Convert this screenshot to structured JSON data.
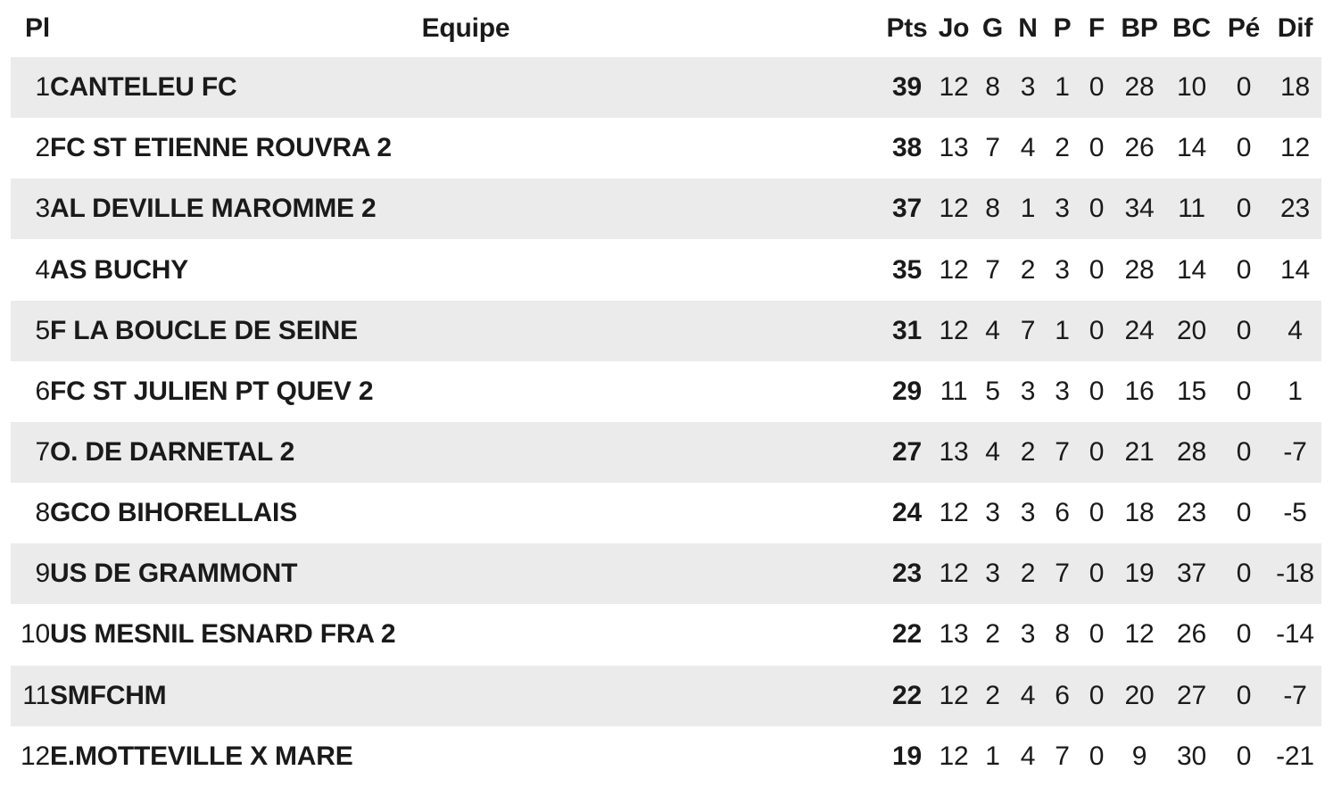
{
  "chart_data": {
    "type": "table",
    "title": "",
    "columns": [
      {
        "key": "pl",
        "label": "Pl"
      },
      {
        "key": "equipe",
        "label": "Equipe"
      },
      {
        "key": "pts",
        "label": "Pts"
      },
      {
        "key": "jo",
        "label": "Jo"
      },
      {
        "key": "g",
        "label": "G"
      },
      {
        "key": "n",
        "label": "N"
      },
      {
        "key": "p",
        "label": "P"
      },
      {
        "key": "f",
        "label": "F"
      },
      {
        "key": "bp",
        "label": "BP"
      },
      {
        "key": "bc",
        "label": "BC"
      },
      {
        "key": "pe",
        "label": "Pé"
      },
      {
        "key": "dif",
        "label": "Dif"
      }
    ],
    "rows": [
      {
        "pl": "1",
        "equipe": "CANTELEU FC",
        "pts": "39",
        "jo": "12",
        "g": "8",
        "n": "3",
        "p": "1",
        "f": "0",
        "bp": "28",
        "bc": "10",
        "pe": "0",
        "dif": "18"
      },
      {
        "pl": "2",
        "equipe": "FC ST ETIENNE ROUVRA 2",
        "pts": "38",
        "jo": "13",
        "g": "7",
        "n": "4",
        "p": "2",
        "f": "0",
        "bp": "26",
        "bc": "14",
        "pe": "0",
        "dif": "12"
      },
      {
        "pl": "3",
        "equipe": "AL DEVILLE MAROMME 2",
        "pts": "37",
        "jo": "12",
        "g": "8",
        "n": "1",
        "p": "3",
        "f": "0",
        "bp": "34",
        "bc": "11",
        "pe": "0",
        "dif": "23"
      },
      {
        "pl": "4",
        "equipe": "AS BUCHY",
        "pts": "35",
        "jo": "12",
        "g": "7",
        "n": "2",
        "p": "3",
        "f": "0",
        "bp": "28",
        "bc": "14",
        "pe": "0",
        "dif": "14"
      },
      {
        "pl": "5",
        "equipe": "F LA BOUCLE DE SEINE",
        "pts": "31",
        "jo": "12",
        "g": "4",
        "n": "7",
        "p": "1",
        "f": "0",
        "bp": "24",
        "bc": "20",
        "pe": "0",
        "dif": "4"
      },
      {
        "pl": "6",
        "equipe": "FC ST JULIEN PT QUEV 2",
        "pts": "29",
        "jo": "11",
        "g": "5",
        "n": "3",
        "p": "3",
        "f": "0",
        "bp": "16",
        "bc": "15",
        "pe": "0",
        "dif": "1"
      },
      {
        "pl": "7",
        "equipe": "O. DE DARNETAL 2",
        "pts": "27",
        "jo": "13",
        "g": "4",
        "n": "2",
        "p": "7",
        "f": "0",
        "bp": "21",
        "bc": "28",
        "pe": "0",
        "dif": "-7"
      },
      {
        "pl": "8",
        "equipe": "GCO BIHORELLAIS",
        "pts": "24",
        "jo": "12",
        "g": "3",
        "n": "3",
        "p": "6",
        "f": "0",
        "bp": "18",
        "bc": "23",
        "pe": "0",
        "dif": "-5"
      },
      {
        "pl": "9",
        "equipe": "US DE GRAMMONT",
        "pts": "23",
        "jo": "12",
        "g": "3",
        "n": "2",
        "p": "7",
        "f": "0",
        "bp": "19",
        "bc": "37",
        "pe": "0",
        "dif": "-18"
      },
      {
        "pl": "10",
        "equipe": "US MESNIL ESNARD FRA 2",
        "pts": "22",
        "jo": "13",
        "g": "2",
        "n": "3",
        "p": "8",
        "f": "0",
        "bp": "12",
        "bc": "26",
        "pe": "0",
        "dif": "-14"
      },
      {
        "pl": "11",
        "equipe": "SMFCHM",
        "pts": "22",
        "jo": "12",
        "g": "2",
        "n": "4",
        "p": "6",
        "f": "0",
        "bp": "20",
        "bc": "27",
        "pe": "0",
        "dif": "-7"
      },
      {
        "pl": "12",
        "equipe": "E.MOTTEVILLE X MARE",
        "pts": "19",
        "jo": "12",
        "g": "1",
        "n": "4",
        "p": "7",
        "f": "0",
        "bp": "9",
        "bc": "30",
        "pe": "0",
        "dif": "-21"
      }
    ],
    "layout_hints": {
      "striped_rows": "odd",
      "bold_columns": [
        "pts",
        "equipe"
      ],
      "header_bold": true
    }
  },
  "colors": {
    "background": "#ffffff",
    "stripe": "#ebebeb",
    "text": "#1a1a1a"
  }
}
